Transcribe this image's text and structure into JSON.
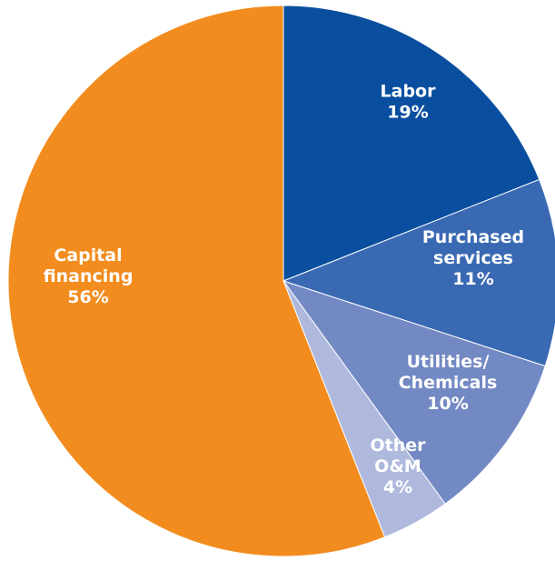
{
  "chart_data": {
    "type": "pie",
    "title": "",
    "start_angle_deg": 0,
    "direction": "clockwise",
    "slices": [
      {
        "label_lines": [
          "Labor"
        ],
        "value": 19,
        "display": "19%",
        "color": "#0A4F9F"
      },
      {
        "label_lines": [
          "Purchased",
          "services"
        ],
        "value": 11,
        "display": "11%",
        "color": "#3A69B3"
      },
      {
        "label_lines": [
          "Utilities/",
          "Chemicals"
        ],
        "value": 10,
        "display": "10%",
        "color": "#7389C4"
      },
      {
        "label_lines": [
          "Other",
          "O&M"
        ],
        "value": 4,
        "display": "4%",
        "color": "#AEB9DD"
      },
      {
        "label_lines": [
          "Capital",
          "financing"
        ],
        "value": 56,
        "display": "56%",
        "color": "#F28C1E"
      }
    ]
  }
}
